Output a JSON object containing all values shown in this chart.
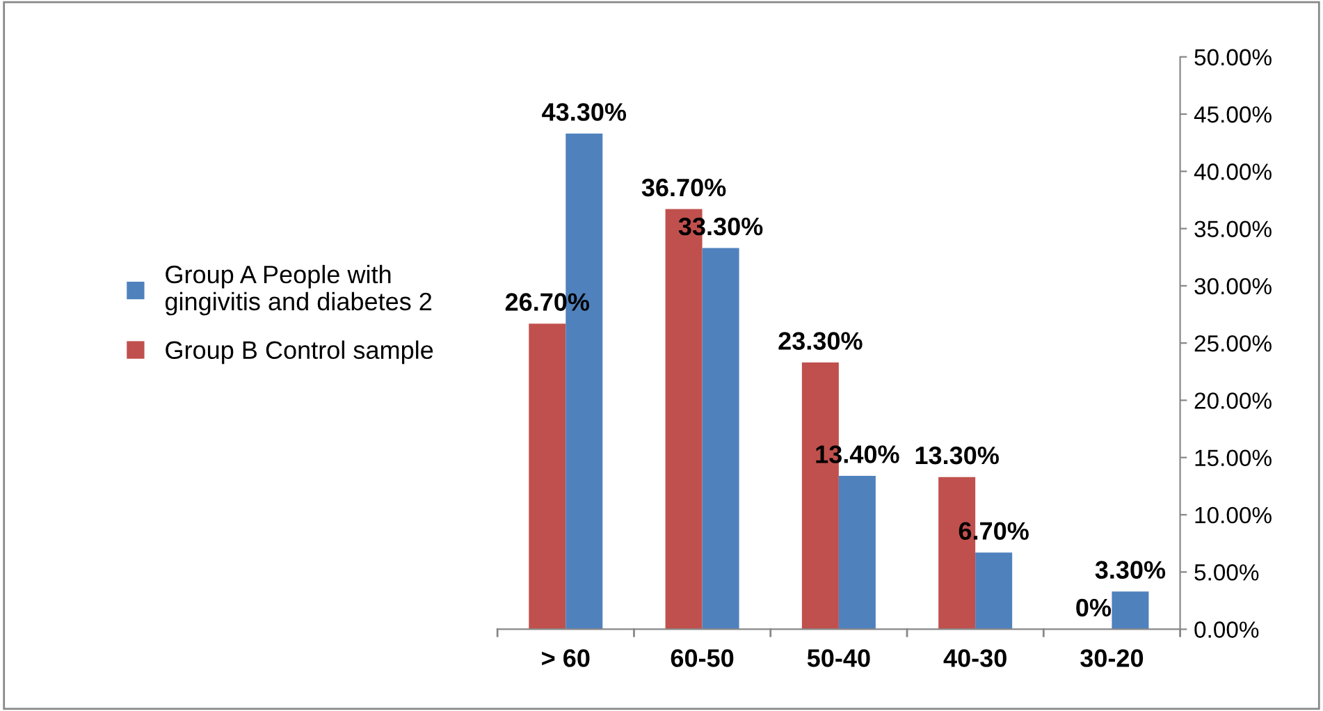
{
  "chart_data": {
    "type": "bar",
    "categories": [
      "> 60",
      "60-50",
      "50-40",
      "40-30",
      "30-20"
    ],
    "series": [
      {
        "name": "Group B Control sample",
        "color": "#c0504d",
        "values": [
          26.7,
          36.7,
          23.3,
          13.3,
          0
        ],
        "value_labels": [
          "26.70%",
          "36.70%",
          "23.30%",
          "13.30%",
          "0%"
        ]
      },
      {
        "name": "Group A People with gingivitis and diabetes 2",
        "color": "#4f81bd",
        "values": [
          43.3,
          33.3,
          13.4,
          6.7,
          3.3
        ],
        "value_labels": [
          "43.30%",
          "33.30%",
          "13.40%",
          "6.70%",
          "3.30%"
        ]
      }
    ],
    "ylim": [
      0,
      50
    ],
    "yticks": [
      {
        "value": 0,
        "label": "0.00%"
      },
      {
        "value": 5,
        "label": "5.00%"
      },
      {
        "value": 10,
        "label": "10.00%"
      },
      {
        "value": 15,
        "label": "15.00%"
      },
      {
        "value": 20,
        "label": "20.00%"
      },
      {
        "value": 25,
        "label": "25.00%"
      },
      {
        "value": 30,
        "label": "30.00%"
      },
      {
        "value": 35,
        "label": "35.00%"
      },
      {
        "value": 40,
        "label": "40.00%"
      },
      {
        "value": 45,
        "label": "45.00%"
      },
      {
        "value": 50,
        "label": "50.00%"
      }
    ],
    "grid": false,
    "legend": "left"
  }
}
